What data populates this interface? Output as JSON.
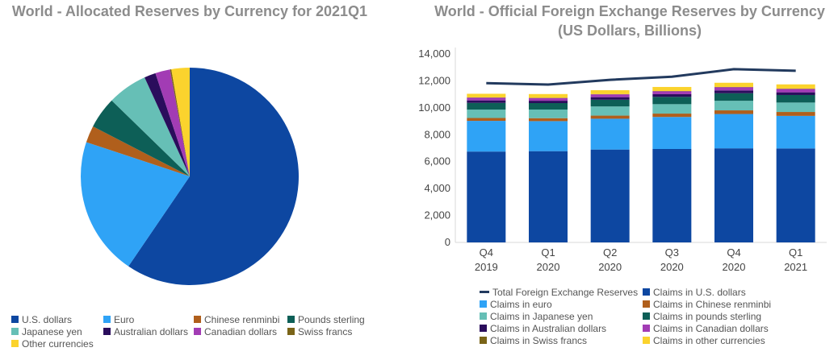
{
  "colors": {
    "usd": "#0d47a1",
    "eur": "#2fa3f6",
    "cny": "#b05f1c",
    "gbp": "#0d5f57",
    "jpy": "#66bfb6",
    "aud": "#2a0d5c",
    "cad": "#a23cb4",
    "chf": "#7a6418",
    "other": "#fbd32d",
    "total": "#223a5e"
  },
  "chart_data": [
    {
      "type": "pie",
      "title": "World - Allocated Reserves by Currency for 2021Q1",
      "legend_position": "bottom",
      "slices": [
        {
          "name": "U.S. dollars",
          "key": "usd",
          "value": 59.5
        },
        {
          "name": "Euro",
          "key": "eur",
          "value": 20.6
        },
        {
          "name": "Chinese renminbi",
          "key": "cny",
          "value": 2.5
        },
        {
          "name": "Pounds sterling",
          "key": "gbp",
          "value": 4.7
        },
        {
          "name": "Japanese yen",
          "key": "jpy",
          "value": 5.9
        },
        {
          "name": "Australian dollars",
          "key": "aud",
          "value": 1.7
        },
        {
          "name": "Canadian dollars",
          "key": "cad",
          "value": 2.2
        },
        {
          "name": "Swiss francs",
          "key": "chf",
          "value": 0.2
        },
        {
          "name": "Other currencies",
          "key": "other",
          "value": 2.7
        }
      ]
    },
    {
      "type": "bar",
      "title": "World - Official Foreign Exchange Reserves by Currency",
      "subtitle": "(US Dollars, Billions)",
      "categories": [
        [
          "Q4",
          "2019"
        ],
        [
          "Q1",
          "2020"
        ],
        [
          "Q2",
          "2020"
        ],
        [
          "Q3",
          "2020"
        ],
        [
          "Q4",
          "2020"
        ],
        [
          "Q1",
          "2021"
        ]
      ],
      "ylim": [
        0,
        14000
      ],
      "yticks": [
        "0",
        "2,000",
        "4,000",
        "6,000",
        "8,000",
        "10,000",
        "12,000",
        "14,000"
      ],
      "ytick_values": [
        0,
        2000,
        4000,
        6000,
        8000,
        10000,
        12000,
        14000
      ],
      "legend_position": "bottom",
      "line": {
        "name": "Total Foreign Exchange Reserves",
        "key": "total",
        "values": [
          11830,
          11730,
          12080,
          12310,
          12870,
          12750
        ]
      },
      "series": [
        {
          "name": "Claims in U.S. dollars",
          "key": "usd",
          "values": [
            6750,
            6780,
            6900,
            6940,
            6990,
            6980
          ]
        },
        {
          "name": "Claims in euro",
          "key": "eur",
          "values": [
            2280,
            2230,
            2290,
            2380,
            2550,
            2420
          ]
        },
        {
          "name": "Claims in Chinese renminbi",
          "key": "cny",
          "values": [
            215,
            220,
            230,
            250,
            270,
            290
          ]
        },
        {
          "name": "Claims in Japanese yen",
          "key": "jpy",
          "values": [
            620,
            640,
            680,
            700,
            710,
            700
          ]
        },
        {
          "name": "Claims in pounds sterling",
          "key": "gbp",
          "values": [
            500,
            480,
            500,
            540,
            560,
            560
          ]
        },
        {
          "name": "Claims in Australian dollars",
          "key": "aud",
          "values": [
            185,
            175,
            190,
            200,
            210,
            200
          ]
        },
        {
          "name": "Claims in Canadian dollars",
          "key": "cad",
          "values": [
            205,
            200,
            210,
            220,
            240,
            250
          ]
        },
        {
          "name": "Claims in Swiss francs",
          "key": "chf",
          "values": [
            17,
            17,
            18,
            19,
            20,
            20
          ]
        },
        {
          "name": "Claims in other currencies",
          "key": "other",
          "values": [
            270,
            280,
            290,
            300,
            310,
            320
          ]
        }
      ]
    }
  ]
}
